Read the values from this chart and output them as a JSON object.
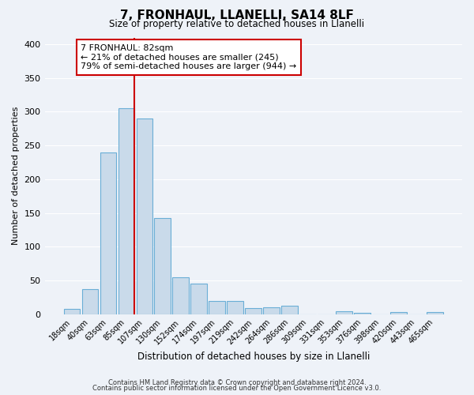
{
  "title": "7, FRONHAUL, LLANELLI, SA14 8LF",
  "subtitle": "Size of property relative to detached houses in Llanelli",
  "xlabel": "Distribution of detached houses by size in Llanelli",
  "ylabel": "Number of detached properties",
  "bar_labels": [
    "18sqm",
    "40sqm",
    "63sqm",
    "85sqm",
    "107sqm",
    "130sqm",
    "152sqm",
    "174sqm",
    "197sqm",
    "219sqm",
    "242sqm",
    "264sqm",
    "286sqm",
    "309sqm",
    "331sqm",
    "353sqm",
    "376sqm",
    "398sqm",
    "420sqm",
    "443sqm",
    "465sqm"
  ],
  "bar_values": [
    8,
    37,
    240,
    305,
    290,
    143,
    55,
    45,
    20,
    20,
    9,
    10,
    13,
    0,
    0,
    4,
    2,
    0,
    3,
    0,
    3
  ],
  "bar_color": "#c9daea",
  "bar_edge_color": "#6aaed6",
  "ylim": [
    0,
    410
  ],
  "yticks": [
    0,
    50,
    100,
    150,
    200,
    250,
    300,
    350,
    400
  ],
  "vline_color": "#cc0000",
  "annotation_title": "7 FRONHAUL: 82sqm",
  "annotation_line1": "← 21% of detached houses are smaller (245)",
  "annotation_line2": "79% of semi-detached houses are larger (944) →",
  "annotation_box_color": "#cc0000",
  "footer1": "Contains HM Land Registry data © Crown copyright and database right 2024.",
  "footer2": "Contains public sector information licensed under the Open Government Licence v3.0.",
  "background_color": "#eef2f8",
  "plot_bg_color": "#eef2f8",
  "grid_color": "#ffffff"
}
